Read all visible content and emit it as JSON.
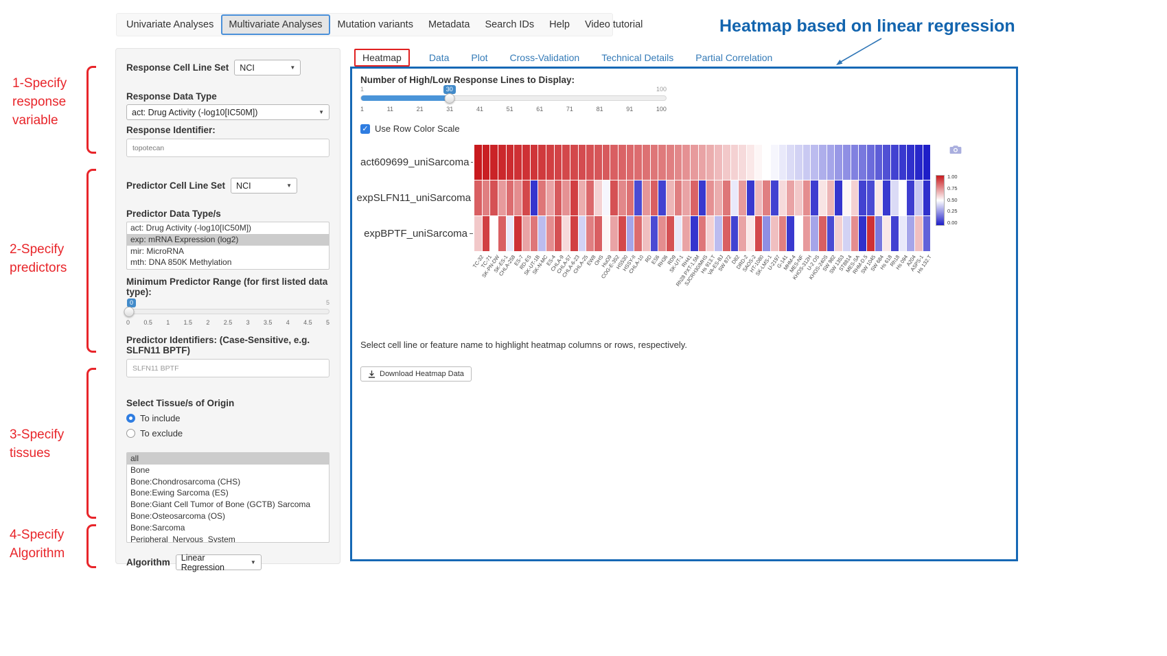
{
  "colors": {
    "panel_border": "#1668b5",
    "annotation_red": "#e8252a",
    "annotation_blue": "#1264ae",
    "link_blue": "#337ab7",
    "slider_badge": "#428bca",
    "slider_fill": "#4a94d8",
    "nav_active_outline": "#4a90d9",
    "heatmap_high": "#c81a1e",
    "heatmap_low": "#1e1ec8"
  },
  "nav": {
    "items": [
      {
        "label": "Univariate Analyses",
        "active": false
      },
      {
        "label": "Multivariate Analyses",
        "active": true
      },
      {
        "label": "Mutation variants",
        "active": false
      },
      {
        "label": "Metadata",
        "active": false
      },
      {
        "label": "Search IDs",
        "active": false
      },
      {
        "label": "Help",
        "active": false
      },
      {
        "label": "Video tutorial",
        "active": false
      }
    ]
  },
  "annotation": {
    "title": "Heatmap based on linear regression",
    "step1": "1-Specify\nresponse\nvariable",
    "step2": "2-Specify\npredictors",
    "step3": "3-Specify\ntissues",
    "step4": "4-Specify\nAlgorithm"
  },
  "sidebar": {
    "response_cell_line_set": {
      "label": "Response Cell Line Set",
      "value": "NCI"
    },
    "response_data_type": {
      "label": "Response Data Type",
      "value": "act: Drug Activity (-log10[IC50M])"
    },
    "response_identifier": {
      "label": "Response Identifier:",
      "value": "topotecan"
    },
    "predictor_cell_line_set": {
      "label": "Predictor Cell Line Set",
      "value": "NCI"
    },
    "predictor_data_types": {
      "label": "Predictor Data Type/s",
      "options": [
        "act: Drug Activity (-log10[IC50M])",
        "exp: mRNA Expression (log2)",
        "mir: MicroRNA",
        "mth: DNA 850K Methylation"
      ],
      "selected": "exp: mRNA Expression (log2)"
    },
    "min_predictor_range": {
      "label": "Minimum Predictor Range (for first listed data type):",
      "value": 0,
      "min": 0,
      "max": 5,
      "value_label": "0",
      "max_label": "5",
      "ticks": [
        "0",
        "0.5",
        "1",
        "1.5",
        "2",
        "2.5",
        "3",
        "3.5",
        "4",
        "4.5",
        "5"
      ]
    },
    "predictor_identifiers": {
      "label": "Predictor Identifiers: (Case-Sensitive, e.g. SLFN11 BPTF)",
      "value": "SLFN11 BPTF"
    },
    "tissue": {
      "label": "Select Tissue/s of Origin",
      "radio_include": "To include",
      "radio_exclude": "To exclude",
      "include_selected": true,
      "options": [
        "all",
        "Bone",
        "Bone:Chondrosarcoma (CHS)",
        "Bone:Ewing Sarcoma (ES)",
        "Bone:Giant Cell Tumor of Bone (GCTB) Sarcoma",
        "Bone:Osteosarcoma (OS)",
        "Bone:Sarcoma",
        "Peripheral_Nervous_System"
      ],
      "selected": "all"
    },
    "algorithm": {
      "label": "Algorithm",
      "value": "Linear Regression"
    }
  },
  "main": {
    "tabs": [
      {
        "label": "Heatmap",
        "active": true
      },
      {
        "label": "Data",
        "active": false
      },
      {
        "label": "Plot",
        "active": false
      },
      {
        "label": "Cross-Validation",
        "active": false
      },
      {
        "label": "Technical Details",
        "active": false
      },
      {
        "label": "Partial Correlation",
        "active": false
      }
    ],
    "slider": {
      "label": "Number of High/Low Response Lines to Display:",
      "min_label": "1",
      "max_label": "100",
      "value": 30,
      "value_label": "30",
      "ticks": [
        "1",
        "11",
        "21",
        "31",
        "41",
        "51",
        "61",
        "71",
        "81",
        "91",
        "100"
      ]
    },
    "row_color_scale_label": "Use Row Color Scale",
    "row_color_scale_checked": true,
    "hint": "Select cell line or feature name to highlight heatmap columns or rows, respectively.",
    "download_button": "Download Heatmap Data"
  },
  "chart_data": {
    "type": "heatmap",
    "rows": [
      "act609699_uniSarcoma",
      "expSLFN11_uniSarcoma",
      "expBPTF_uniSarcoma"
    ],
    "columns": [
      "TC-32",
      "TC-71",
      "SK-PN-DW",
      "SK-ES-1",
      "CHLA-258",
      "ES-7",
      "RD-ES",
      "SK-UT-1B",
      "SK-N-MC",
      "ES-4",
      "CHLA-9",
      "CHLA-57",
      "CHLA-6-23",
      "CHLA-25",
      "EW8",
      "OHS",
      "HuO9",
      "COG-E-352",
      "HS530",
      "HSSY-II",
      "CHLA-10",
      "RD",
      "ES6",
      "RH36",
      "RD9",
      "SK-UT-1",
      "RH41",
      "Rh28 PXT-1.5M",
      "SJCRH30/MHS",
      "Hs 913.T",
      "VA-ES-BJ",
      "SW 872",
      "D82",
      "DRD-2",
      "SAOS-2",
      "HT-1080",
      "SK-LMS-1",
      "U-2197",
      "G-141",
      "MHM-4",
      "MES-NF",
      "KHOS-312H",
      "U-2 OS",
      "KHOS-240S",
      "SW 982",
      "SW 1353",
      "ST8814",
      "MES-SA",
      "RHM-D.5",
      "SW 1045",
      "SW 684",
      "Hs 618",
      "Rh18",
      "Hs 094",
      "A204",
      "ASPS-1",
      "Hs 132.T"
    ],
    "series": [
      {
        "name": "act609699_uniSarcoma",
        "values": [
          1.0,
          0.99,
          0.98,
          0.97,
          0.96,
          0.95,
          0.95,
          0.94,
          0.93,
          0.92,
          0.91,
          0.9,
          0.9,
          0.89,
          0.88,
          0.87,
          0.86,
          0.85,
          0.84,
          0.83,
          0.82,
          0.81,
          0.8,
          0.79,
          0.78,
          0.76,
          0.74,
          0.72,
          0.7,
          0.68,
          0.65,
          0.62,
          0.6,
          0.58,
          0.55,
          0.52,
          0.5,
          0.48,
          0.45,
          0.42,
          0.4,
          0.38,
          0.35,
          0.32,
          0.3,
          0.27,
          0.25,
          0.22,
          0.2,
          0.17,
          0.14,
          0.11,
          0.08,
          0.06,
          0.04,
          0.02,
          0.0
        ]
      },
      {
        "name": "expSLFN11_uniSarcoma",
        "values": [
          0.85,
          0.78,
          0.88,
          0.72,
          0.82,
          0.75,
          0.9,
          0.05,
          0.8,
          0.7,
          0.86,
          0.74,
          0.92,
          0.68,
          0.83,
          0.6,
          0.48,
          0.88,
          0.76,
          0.81,
          0.1,
          0.73,
          0.85,
          0.08,
          0.66,
          0.78,
          0.7,
          0.84,
          0.06,
          0.74,
          0.68,
          0.8,
          0.45,
          0.72,
          0.06,
          0.65,
          0.78,
          0.08,
          0.58,
          0.7,
          0.62,
          0.75,
          0.07,
          0.56,
          0.66,
          0.05,
          0.52,
          0.6,
          0.08,
          0.1,
          0.55,
          0.06,
          0.42,
          0.5,
          0.07,
          0.38,
          0.04
        ]
      },
      {
        "name": "expBPTF_uniSarcoma",
        "values": [
          0.62,
          0.92,
          0.5,
          0.85,
          0.45,
          0.95,
          0.7,
          0.8,
          0.35,
          0.75,
          0.88,
          0.58,
          0.92,
          0.4,
          0.78,
          0.85,
          0.52,
          0.7,
          0.9,
          0.3,
          0.82,
          0.64,
          0.1,
          0.75,
          0.88,
          0.45,
          0.7,
          0.05,
          0.8,
          0.6,
          0.35,
          0.85,
          0.08,
          0.7,
          0.55,
          0.9,
          0.25,
          0.64,
          0.78,
          0.06,
          0.5,
          0.72,
          0.3,
          0.85,
          0.1,
          0.6,
          0.4,
          0.75,
          0.04,
          0.95,
          0.2,
          0.55,
          0.08,
          0.45,
          0.3,
          0.64,
          0.15
        ]
      }
    ],
    "colorscale": {
      "min": 0,
      "max": 1,
      "high_color": "#c81a1e",
      "mid_color": "#ffffff",
      "low_color": "#1e1ec8",
      "legend_ticks": [
        "1.00",
        "0.75",
        "0.50",
        "0.25",
        "0.00"
      ]
    },
    "title": "",
    "legend_position": "right",
    "notes": "Row 1 sorted high-to-low response; Use Row Color Scale enabled (each row normalized 0-1)."
  }
}
